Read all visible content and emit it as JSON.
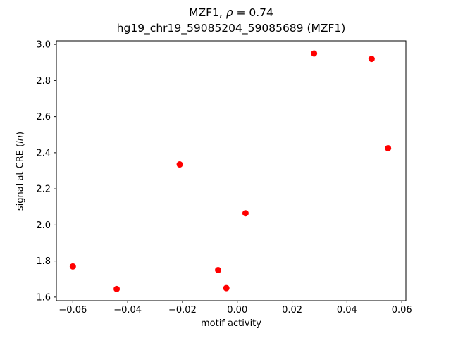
{
  "chart_data": {
    "type": "scatter",
    "title": "MZF1, ρ = 0.74",
    "title_prefix": "MZF1, ",
    "title_italic": "ρ",
    "title_suffix": " = 0.74",
    "subtitle": "hg19_chr19_59085204_59085689 (MZF1)",
    "xlabel": "motif activity",
    "ylabel": "signal at CRE (ln)",
    "ylabel_prefix": "signal at CRE (",
    "ylabel_italic": "ln",
    "ylabel_suffix": ")",
    "xlim": [
      -0.066,
      0.0615
    ],
    "ylim": [
      1.58,
      3.02
    ],
    "xticks": [
      -0.06,
      -0.04,
      -0.02,
      0.0,
      0.02,
      0.04,
      0.06
    ],
    "xtick_labels": [
      "−0.06",
      "−0.04",
      "−0.02",
      "0.00",
      "0.02",
      "0.04",
      "0.06"
    ],
    "yticks": [
      1.6,
      1.8,
      2.0,
      2.2,
      2.4,
      2.6,
      2.8,
      3.0
    ],
    "ytick_labels": [
      "1.6",
      "1.8",
      "2.0",
      "2.2",
      "2.4",
      "2.6",
      "2.8",
      "3.0"
    ],
    "marker_color": "#ff0000",
    "marker_radius": 4.5,
    "legend": "none",
    "grid": "off",
    "points": [
      {
        "x": -0.06,
        "y": 1.77
      },
      {
        "x": -0.044,
        "y": 1.645
      },
      {
        "x": -0.021,
        "y": 2.335
      },
      {
        "x": -0.007,
        "y": 1.75
      },
      {
        "x": -0.004,
        "y": 1.65
      },
      {
        "x": 0.003,
        "y": 2.065
      },
      {
        "x": 0.028,
        "y": 2.95
      },
      {
        "x": 0.049,
        "y": 2.92
      },
      {
        "x": 0.055,
        "y": 2.425
      }
    ]
  }
}
